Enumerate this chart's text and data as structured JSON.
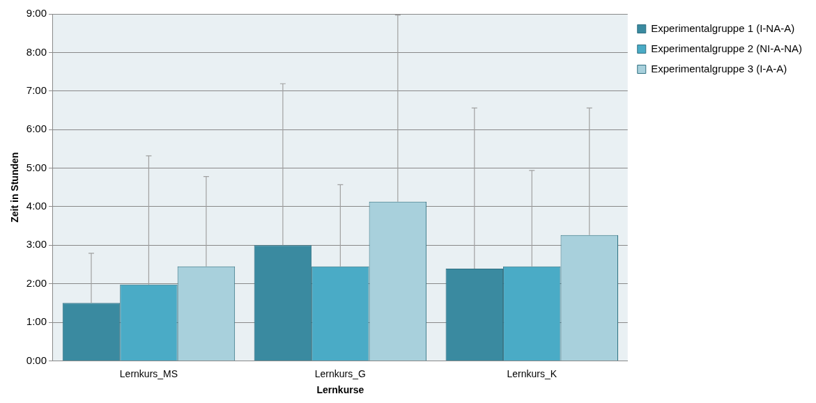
{
  "chart_data": {
    "type": "bar",
    "xlabel": "Lernkurse",
    "ylabel": "Zeit in Stunden",
    "categories": [
      "Lernkurs_MS",
      "Lernkurs_G",
      "Lernkurs_K"
    ],
    "series": [
      {
        "name": "Experimentalgruppe 1 (I-NA-A)",
        "color": "#3a8aa0",
        "values": [
          1.5,
          3.0,
          2.39
        ],
        "errors": [
          [
            1.5,
            2.79
          ],
          [
            3.0,
            7.19
          ],
          [
            2.39,
            6.56
          ]
        ]
      },
      {
        "name": "Experimentalgruppe 2 (NI-A-NA)",
        "color": "#4aabc6",
        "values": [
          1.98,
          2.45,
          2.45
        ],
        "errors": [
          [
            1.98,
            5.32
          ],
          [
            2.45,
            4.57
          ],
          [
            2.45,
            4.94
          ]
        ]
      },
      {
        "name": "Experimentalgruppe 3 (I-A-A)",
        "color": "#a8d0dc",
        "values": [
          2.45,
          4.13,
          3.26
        ],
        "errors": [
          [
            2.45,
            4.78
          ],
          [
            4.13,
            8.97
          ],
          [
            3.26,
            6.56
          ]
        ]
      }
    ],
    "ylim": [
      0,
      9
    ],
    "yticks": [
      {
        "value": 0,
        "label": "0:00"
      },
      {
        "value": 1,
        "label": "1:00"
      },
      {
        "value": 2,
        "label": "2:00"
      },
      {
        "value": 3,
        "label": "3:00"
      },
      {
        "value": 4,
        "label": "4:00"
      },
      {
        "value": 5,
        "label": "5:00"
      },
      {
        "value": 6,
        "label": "6:00"
      },
      {
        "value": 7,
        "label": "7:00"
      },
      {
        "value": 8,
        "label": "8:00"
      },
      {
        "value": 9,
        "label": "9:00"
      }
    ],
    "grid": "y",
    "legend": "right"
  }
}
